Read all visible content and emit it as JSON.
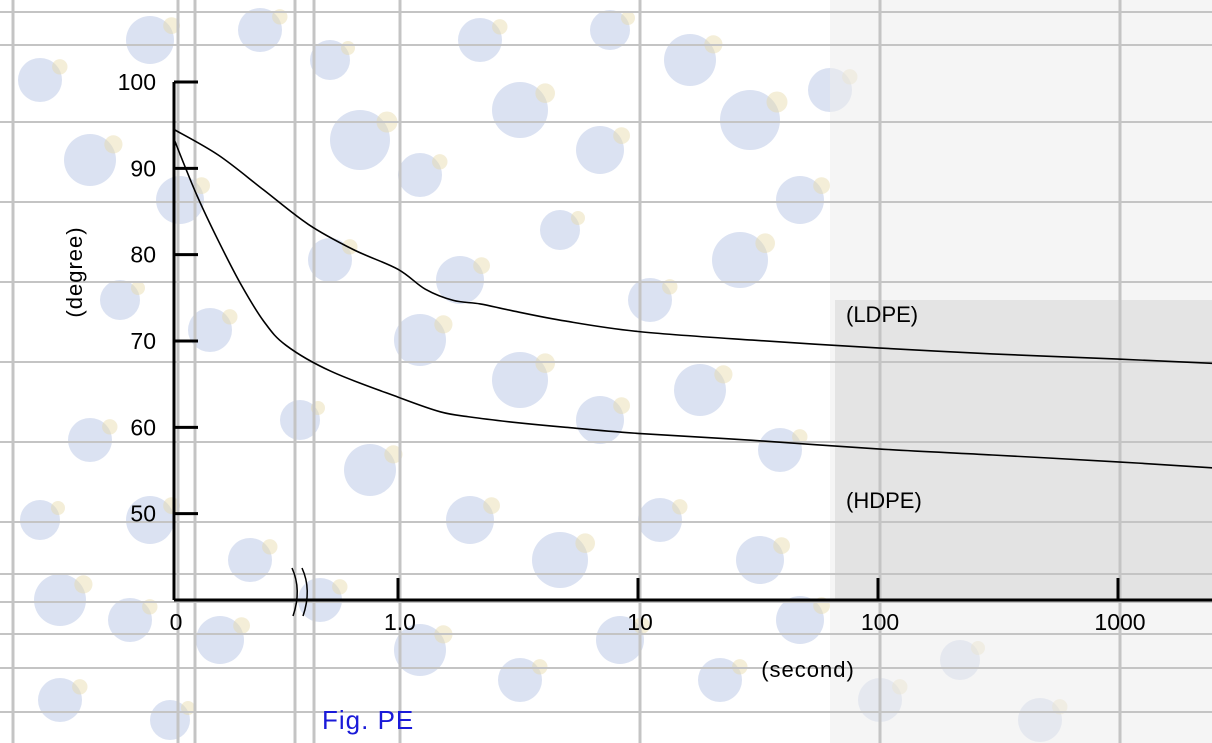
{
  "colors": {
    "background": "#ffffff",
    "backdrop_bubble": "#8fa6d8",
    "backdrop_bubble_light": "#e7d9a8",
    "grid_line": "#c4c4c4",
    "axis": "#000000",
    "curve": "#000000",
    "caption": "#1a1ad8",
    "monitor_shade": "#d9d9d9"
  },
  "caption": "Fig. PE",
  "chart_data": {
    "type": "line",
    "title": "",
    "xlabel": "(second)",
    "ylabel": "(degree)",
    "x_scale": "log10 with axis break between 0 and 1.0",
    "x_ticks": [
      "0",
      "1.0",
      "10",
      "100",
      "1000"
    ],
    "y_ticks": [
      "50",
      "60",
      "70",
      "80",
      "90",
      "100"
    ],
    "ylim": [
      40,
      100
    ],
    "axis_break": "between 0 and 1.0",
    "grid": true,
    "series": [
      {
        "name": "(LDPE)",
        "points": [
          [
            0,
            94.5
          ],
          [
            0.2,
            91.5
          ],
          [
            0.4,
            87.5
          ],
          [
            0.6,
            83.5
          ],
          [
            0.8,
            80.6
          ],
          [
            1.0,
            78.3
          ],
          [
            1.3,
            76
          ],
          [
            1.7,
            74.7
          ],
          [
            2.2,
            74.3
          ],
          [
            3,
            73.5
          ],
          [
            5,
            72.3
          ],
          [
            10,
            71.1
          ],
          [
            30,
            70.1
          ],
          [
            100,
            69.2
          ],
          [
            300,
            68.5
          ],
          [
            1000,
            67.9
          ],
          [
            2500,
            67.4
          ]
        ]
      },
      {
        "name": "(HDPE)",
        "points": [
          [
            0,
            93.4
          ],
          [
            0.1,
            87
          ],
          [
            0.2,
            81.5
          ],
          [
            0.3,
            76.5
          ],
          [
            0.4,
            72.3
          ],
          [
            0.5,
            69.5
          ],
          [
            0.7,
            66.5
          ],
          [
            1.0,
            63.5
          ],
          [
            1.5,
            61.8
          ],
          [
            2,
            61.2
          ],
          [
            3,
            60.6
          ],
          [
            5,
            60.0
          ],
          [
            10,
            59.3
          ],
          [
            30,
            58.5
          ],
          [
            100,
            57.5
          ],
          [
            300,
            56.8
          ],
          [
            1000,
            56.0
          ],
          [
            2500,
            55.3
          ]
        ]
      }
    ]
  }
}
